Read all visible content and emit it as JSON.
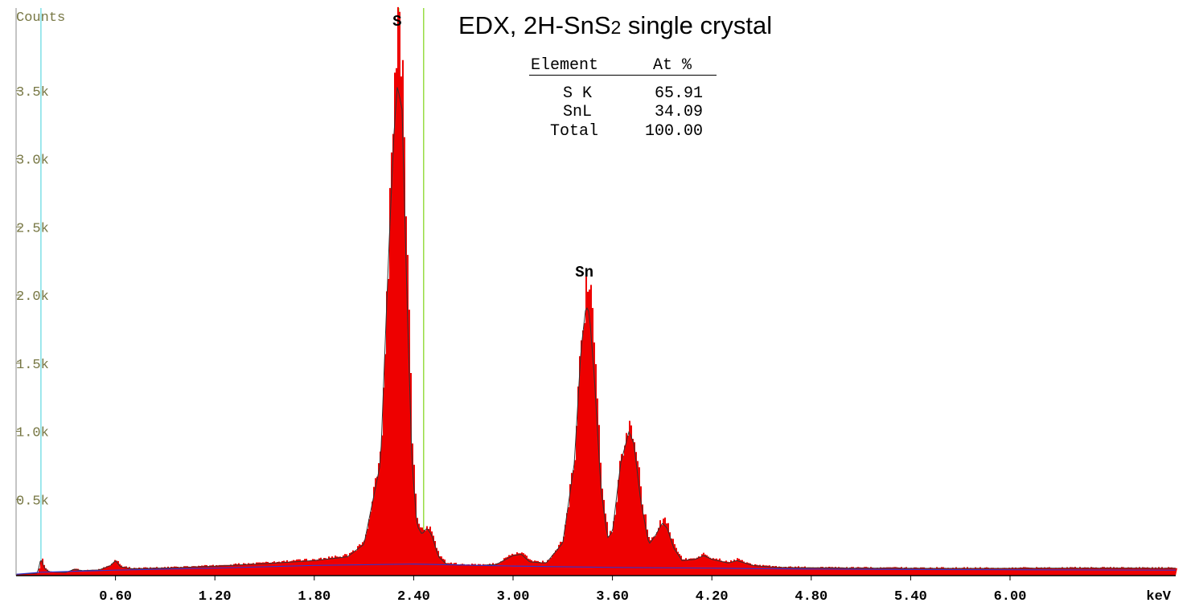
{
  "title": {
    "main": "EDX, 2H-SnS",
    "sub": "2",
    "rest": " single crystal"
  },
  "table": {
    "headers": [
      "Element",
      "At %"
    ],
    "rows": [
      {
        "element": "S K",
        "value": "65.91"
      },
      {
        "element": "SnL",
        "value": "34.09"
      },
      {
        "element": "Total",
        "value": "100.00"
      }
    ]
  },
  "chart_data": {
    "type": "area",
    "ylabel": "Counts",
    "xlabel": "keV",
    "xlim": [
      0.0,
      7.0
    ],
    "ylim": [
      0,
      4000
    ],
    "x_ticks": [
      0.6,
      1.2,
      1.8,
      2.4,
      3.0,
      3.6,
      4.2,
      4.8,
      5.4,
      6.0
    ],
    "x_tick_labels": [
      "0.60",
      "1.20",
      "1.80",
      "2.40",
      "3.00",
      "3.60",
      "4.20",
      "4.80",
      "5.40",
      "6.00"
    ],
    "y_ticks": [
      500,
      1000,
      1500,
      2000,
      2500,
      3000,
      3500
    ],
    "y_tick_labels": [
      "0.5k",
      "1.0k",
      "1.5k",
      "2.0k",
      "2.5k",
      "3.0k",
      "3.5k"
    ],
    "peak_labels": [
      {
        "label": "S",
        "x": 2.31,
        "y": 4000
      },
      {
        "label": "Sn",
        "x": 3.44,
        "y": 2160
      }
    ],
    "marker_lines": [
      {
        "x": 0.15,
        "color": "#7fe0e6"
      },
      {
        "x": 2.31,
        "color": "#66ff33"
      },
      {
        "x": 2.46,
        "color": "#99dd44"
      }
    ],
    "spectrum_fill_color": "#ee0000",
    "fit_line_color": "#333333",
    "background_line_color": "#3333cc",
    "background": [
      [
        0.0,
        10
      ],
      [
        0.15,
        25
      ],
      [
        0.6,
        40
      ],
      [
        1.2,
        55
      ],
      [
        1.8,
        75
      ],
      [
        2.4,
        85
      ],
      [
        3.0,
        70
      ],
      [
        3.6,
        60
      ],
      [
        4.2,
        55
      ],
      [
        4.8,
        48
      ],
      [
        5.4,
        45
      ],
      [
        6.0,
        43
      ],
      [
        7.0,
        40
      ]
    ],
    "spectrum_points": [
      [
        0.0,
        10
      ],
      [
        0.13,
        20
      ],
      [
        0.15,
        140
      ],
      [
        0.17,
        60
      ],
      [
        0.2,
        30
      ],
      [
        0.3,
        25
      ],
      [
        0.35,
        50
      ],
      [
        0.4,
        40
      ],
      [
        0.5,
        45
      ],
      [
        0.57,
        80
      ],
      [
        0.6,
        120
      ],
      [
        0.63,
        70
      ],
      [
        0.7,
        55
      ],
      [
        0.9,
        60
      ],
      [
        1.2,
        75
      ],
      [
        1.5,
        95
      ],
      [
        1.8,
        120
      ],
      [
        2.0,
        150
      ],
      [
        2.1,
        250
      ],
      [
        2.2,
        900
      ],
      [
        2.25,
        2600
      ],
      [
        2.28,
        3500
      ],
      [
        2.3,
        3900
      ],
      [
        2.31,
        3850
      ],
      [
        2.33,
        3720
      ],
      [
        2.36,
        2200
      ],
      [
        2.39,
        900
      ],
      [
        2.42,
        400
      ],
      [
        2.45,
        330
      ],
      [
        2.48,
        380
      ],
      [
        2.51,
        320
      ],
      [
        2.55,
        150
      ],
      [
        2.6,
        90
      ],
      [
        2.8,
        80
      ],
      [
        2.9,
        90
      ],
      [
        3.0,
        160
      ],
      [
        3.05,
        170
      ],
      [
        3.1,
        110
      ],
      [
        3.2,
        100
      ],
      [
        3.3,
        260
      ],
      [
        3.37,
        900
      ],
      [
        3.41,
        1800
      ],
      [
        3.44,
        2150
      ],
      [
        3.46,
        2100
      ],
      [
        3.49,
        1600
      ],
      [
        3.53,
        700
      ],
      [
        3.57,
        300
      ],
      [
        3.6,
        350
      ],
      [
        3.65,
        900
      ],
      [
        3.7,
        1150
      ],
      [
        3.73,
        1050
      ],
      [
        3.77,
        600
      ],
      [
        3.82,
        250
      ],
      [
        3.86,
        320
      ],
      [
        3.9,
        420
      ],
      [
        3.93,
        380
      ],
      [
        3.97,
        220
      ],
      [
        4.02,
        120
      ],
      [
        4.1,
        130
      ],
      [
        4.15,
        160
      ],
      [
        4.2,
        130
      ],
      [
        4.3,
        100
      ],
      [
        4.35,
        120
      ],
      [
        4.45,
        80
      ],
      [
        4.6,
        65
      ],
      [
        5.0,
        60
      ],
      [
        5.5,
        58
      ],
      [
        6.0,
        58
      ],
      [
        6.5,
        60
      ],
      [
        7.0,
        58
      ]
    ]
  }
}
